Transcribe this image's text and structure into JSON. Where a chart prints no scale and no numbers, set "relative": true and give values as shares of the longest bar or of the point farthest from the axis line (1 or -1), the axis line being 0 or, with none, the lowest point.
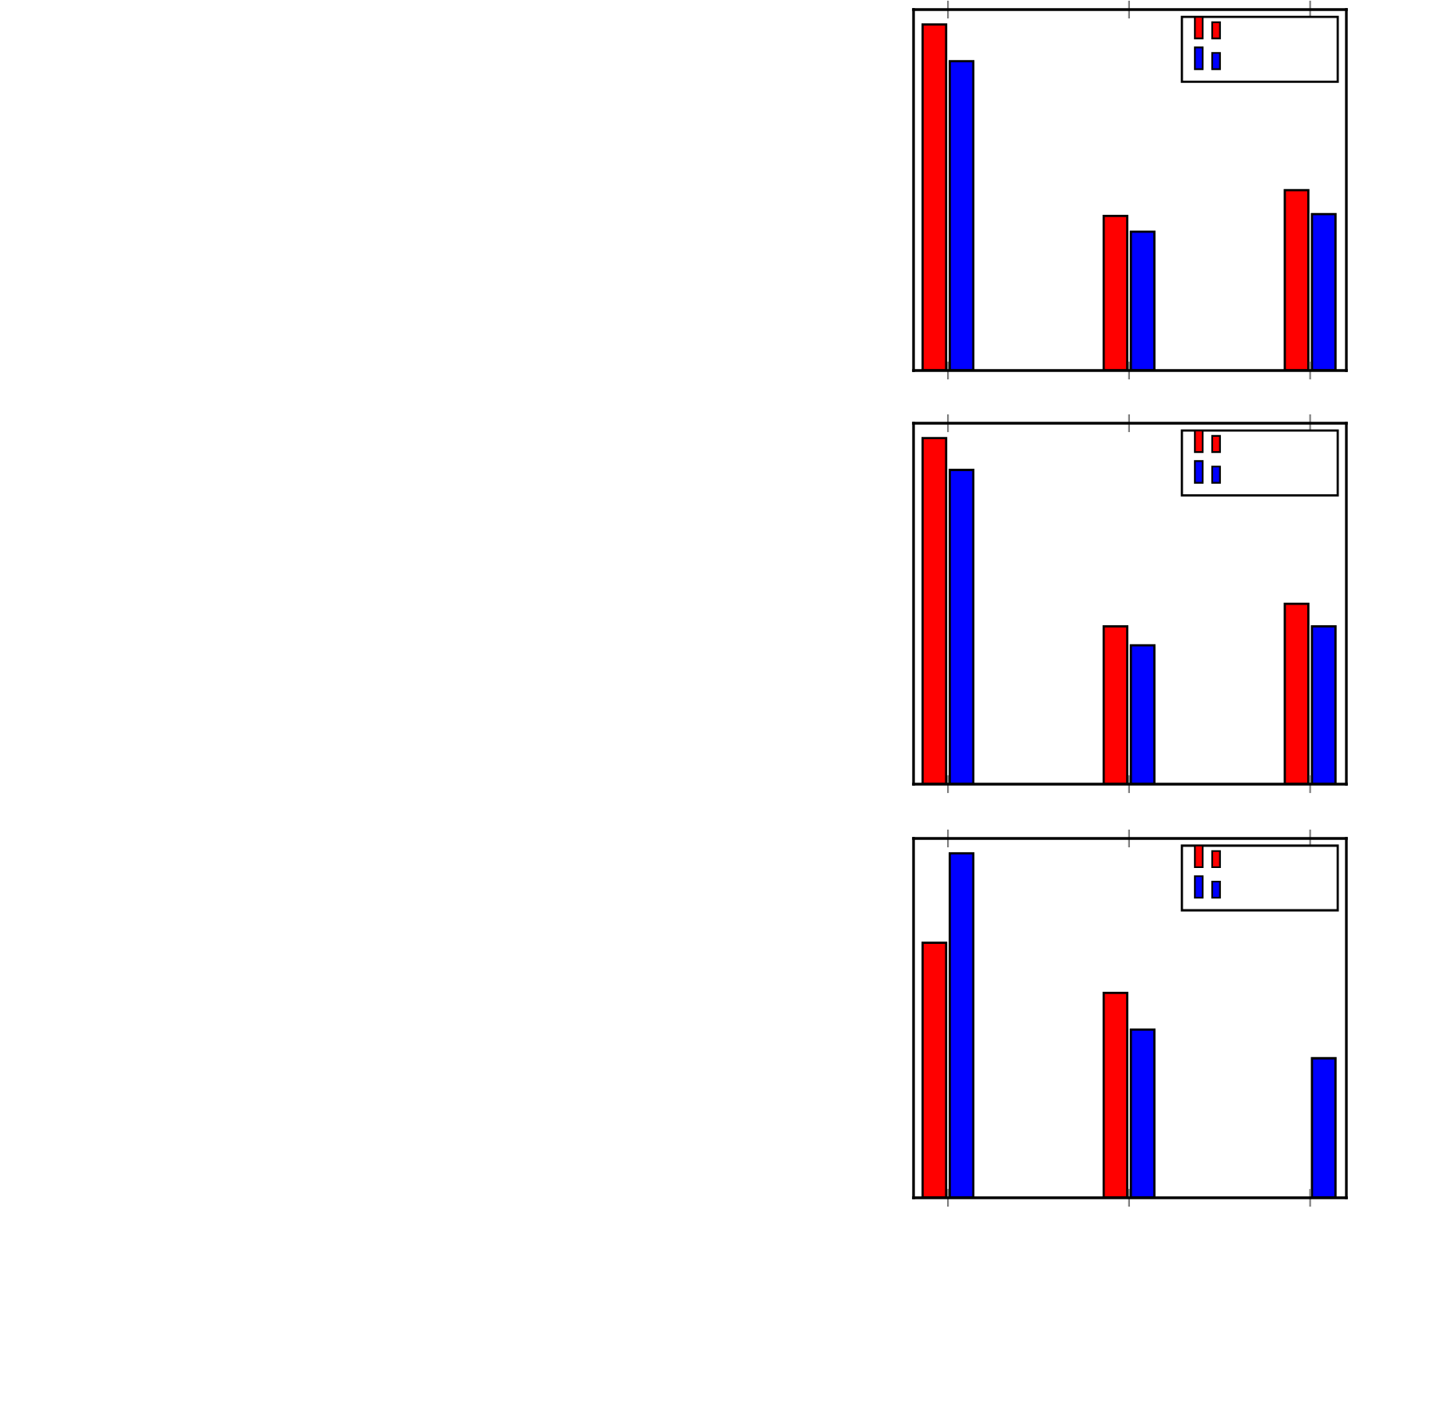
{
  "chart_data": [
    {
      "type": "bar",
      "relative": true,
      "categories": [
        null,
        null,
        null
      ],
      "series": [
        {
          "color": "#ff0000",
          "values": [
            1,
            0.447,
            0.521
          ]
        },
        {
          "color": "#0000ff",
          "values": [
            0.894,
            0.401,
            0.452
          ]
        }
      ]
    },
    {
      "type": "bar",
      "relative": true,
      "categories": [
        null,
        null,
        null
      ],
      "series": [
        {
          "color": "#ff0000",
          "values": [
            1,
            0.456,
            0.521
          ]
        },
        {
          "color": "#0000ff",
          "values": [
            0.908,
            0.401,
            0.456
          ]
        }
      ]
    },
    {
      "type": "bar",
      "relative": true,
      "categories": [
        null,
        null,
        null
      ],
      "series": [
        {
          "color": "#ff0000",
          "values": [
            0.74,
            0.595,
            null
          ]
        },
        {
          "color": "#0000ff",
          "values": [
            1,
            0.488,
            0.405
          ]
        }
      ]
    }
  ]
}
